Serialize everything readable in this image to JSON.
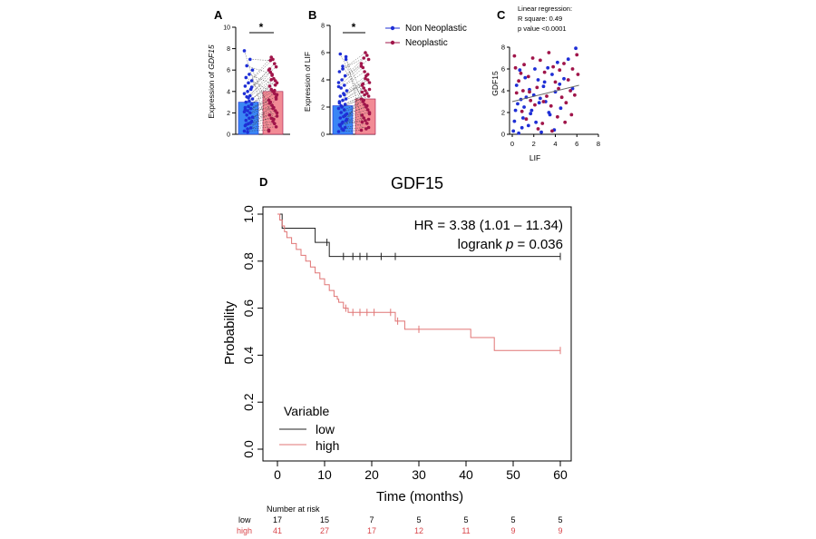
{
  "colors": {
    "blue": "#1f2fd6",
    "red": "#a0154a",
    "bar_blue": "#3a86f5",
    "bar_red": "#f28b95",
    "km_high": "#e07575",
    "km_low": "#222222"
  },
  "chart_data": [
    {
      "panel": "A",
      "type": "bar",
      "ylabel_prefix": "Expression of ",
      "ylabel_gene": "GDF15",
      "ylim": [
        0,
        10
      ],
      "yticks": [
        "0",
        "2",
        "4",
        "6",
        "8",
        "10"
      ],
      "categories": [
        "Non Neoplastic",
        "Neoplastic"
      ],
      "values": [
        3.0,
        4.0
      ],
      "significance": "*",
      "points_blue": [
        0.3,
        0.5,
        0.6,
        0.8,
        1.0,
        1.2,
        1.3,
        1.5,
        1.6,
        1.8,
        2.0,
        2.1,
        2.2,
        2.4,
        2.5,
        2.6,
        2.8,
        3.0,
        3.1,
        3.3,
        3.5,
        3.6,
        3.8,
        4.0,
        4.2,
        4.5,
        4.8,
        5.0,
        5.3,
        5.6,
        6.0,
        6.4,
        7.0,
        7.8,
        0.2,
        1.1,
        2.3,
        3.4,
        4.4,
        0.9
      ],
      "points_red": [
        0.4,
        0.7,
        1.0,
        1.2,
        1.5,
        1.8,
        2.0,
        2.2,
        2.5,
        2.7,
        3.0,
        3.2,
        3.5,
        3.8,
        4.0,
        4.2,
        4.5,
        4.8,
        5.0,
        5.2,
        5.5,
        5.8,
        6.0,
        6.3,
        6.6,
        7.0,
        7.2,
        2.9,
        3.7,
        4.6,
        1.4,
        5.6,
        6.9,
        0.3,
        3.3,
        4.1,
        2.4,
        5.1,
        6.1,
        1.7
      ]
    },
    {
      "panel": "B",
      "type": "bar",
      "ylabel": "Expression of LIF",
      "ylim": [
        0,
        8
      ],
      "yticks": [
        "0",
        "2",
        "4",
        "6",
        "8"
      ],
      "categories": [
        "Non Neoplastic",
        "Neoplastic"
      ],
      "values": [
        2.1,
        2.6
      ],
      "significance": "*",
      "points_blue": [
        0.2,
        0.4,
        0.5,
        0.7,
        0.9,
        1.0,
        1.2,
        1.3,
        1.5,
        1.6,
        1.8,
        1.9,
        2.0,
        2.2,
        2.3,
        2.5,
        2.6,
        2.8,
        3.0,
        3.2,
        3.4,
        3.6,
        3.8,
        4.0,
        4.3,
        4.6,
        5.0,
        5.5,
        5.9,
        0.3,
        1.1,
        2.1,
        2.9,
        3.5,
        0.8,
        1.4,
        2.4,
        4.8,
        5.7,
        0.6
      ],
      "points_red": [
        0.3,
        0.5,
        0.8,
        1.0,
        1.2,
        1.4,
        1.6,
        1.8,
        2.0,
        2.2,
        2.4,
        2.6,
        2.8,
        3.0,
        3.2,
        3.4,
        3.6,
        3.8,
        4.0,
        4.3,
        4.6,
        4.9,
        5.2,
        5.5,
        5.8,
        6.0,
        2.5,
        3.1,
        1.5,
        4.4,
        0.4,
        2.9,
        3.7,
        5.0,
        1.1,
        2.1,
        4.1,
        5.6,
        0.9,
        3.3
      ]
    },
    {
      "panel": "C",
      "type": "scatter",
      "xlabel": "LIF",
      "ylabel": "GDF15",
      "xlim": [
        0,
        8
      ],
      "ylim": [
        0,
        8
      ],
      "xticks": [
        "0",
        "2",
        "4",
        "6",
        "8"
      ],
      "yticks": [
        "0",
        "2",
        "4",
        "6",
        "8"
      ],
      "annotation": [
        "Linear regression:",
        "R square: 0.49",
        "p value <0.0001"
      ],
      "regression": {
        "x": [
          0,
          6.2
        ],
        "y": [
          3.0,
          4.5
        ]
      },
      "points_blue": [
        [
          0.1,
          0.3
        ],
        [
          0.2,
          1.2
        ],
        [
          0.3,
          2.2
        ],
        [
          0.5,
          2.8
        ],
        [
          0.6,
          0.1
        ],
        [
          0.8,
          3.2
        ],
        [
          1.0,
          1.5
        ],
        [
          1.1,
          2.5
        ],
        [
          1.3,
          3.4
        ],
        [
          1.5,
          0.8
        ],
        [
          1.6,
          4.1
        ],
        [
          1.8,
          2.2
        ],
        [
          2.0,
          3.6
        ],
        [
          2.2,
          1.1
        ],
        [
          2.4,
          5.0
        ],
        [
          2.5,
          2.9
        ],
        [
          2.7,
          0.2
        ],
        [
          2.9,
          4.4
        ],
        [
          3.1,
          3.0
        ],
        [
          3.3,
          6.1
        ],
        [
          3.5,
          1.8
        ],
        [
          3.7,
          5.5
        ],
        [
          3.9,
          0.4
        ],
        [
          4.0,
          3.9
        ],
        [
          4.2,
          6.6
        ],
        [
          4.5,
          2.4
        ],
        [
          4.8,
          5.1
        ],
        [
          5.2,
          6.9
        ],
        [
          5.6,
          4.2
        ],
        [
          5.9,
          7.9
        ],
        [
          0.4,
          4.5
        ],
        [
          1.2,
          5.2
        ],
        [
          2.1,
          6.0
        ],
        [
          3.0,
          4.8
        ],
        [
          0.9,
          0.6
        ],
        [
          1.7,
          1.9
        ],
        [
          2.6,
          3.3
        ],
        [
          3.4,
          2.0
        ],
        [
          4.4,
          4.6
        ],
        [
          0.7,
          5.9
        ]
      ],
      "points_red": [
        [
          0.2,
          7.2
        ],
        [
          0.4,
          3.8
        ],
        [
          0.6,
          4.9
        ],
        [
          0.9,
          2.1
        ],
        [
          1.1,
          6.4
        ],
        [
          1.3,
          1.4
        ],
        [
          1.5,
          5.3
        ],
        [
          1.7,
          3.1
        ],
        [
          1.9,
          7.0
        ],
        [
          2.1,
          2.7
        ],
        [
          2.3,
          4.3
        ],
        [
          2.6,
          6.8
        ],
        [
          2.8,
          1.0
        ],
        [
          3.0,
          5.7
        ],
        [
          3.2,
          3.5
        ],
        [
          3.4,
          7.5
        ],
        [
          3.6,
          2.6
        ],
        [
          3.8,
          6.2
        ],
        [
          4.0,
          4.8
        ],
        [
          4.2,
          1.6
        ],
        [
          4.4,
          5.9
        ],
        [
          4.6,
          3.4
        ],
        [
          4.8,
          6.5
        ],
        [
          5.0,
          2.9
        ],
        [
          5.2,
          5.0
        ],
        [
          5.4,
          4.0
        ],
        [
          5.6,
          6.0
        ],
        [
          5.8,
          3.6
        ],
        [
          6.0,
          7.3
        ],
        [
          6.1,
          5.5
        ],
        [
          1.0,
          4.0
        ],
        [
          2.4,
          0.5
        ],
        [
          3.7,
          0.3
        ],
        [
          4.9,
          1.1
        ],
        [
          0.3,
          6.1
        ],
        [
          1.6,
          3.9
        ],
        [
          2.9,
          3.0
        ],
        [
          4.3,
          4.2
        ],
        [
          5.5,
          1.8
        ],
        [
          0.8,
          5.6
        ]
      ]
    },
    {
      "panel": "D",
      "type": "line",
      "title": "GDF15",
      "xlabel": "Time (months)",
      "ylabel": "Probability",
      "xlim": [
        0,
        60
      ],
      "ylim": [
        0,
        1
      ],
      "xticks": [
        "0",
        "10",
        "20",
        "30",
        "40",
        "50",
        "60"
      ],
      "yticks": [
        "0.0",
        "0.2",
        "0.4",
        "0.6",
        "0.8",
        "1.0"
      ],
      "hr_text": "HR = 3.38 (1.01 – 11.34)",
      "logrank_prefix": "logrank ",
      "logrank_p": "p",
      "logrank_suffix": " = 0.036",
      "legend_title": "Variable",
      "series": [
        {
          "name": "low",
          "steps": [
            [
              0,
              1.0
            ],
            [
              1,
              0.94
            ],
            [
              8,
              0.88
            ],
            [
              11,
              0.82
            ],
            [
              60,
              0.82
            ]
          ],
          "censor": [
            10.5,
            14,
            16,
            17.5,
            19,
            22,
            25,
            60
          ]
        },
        {
          "name": "high",
          "steps": [
            [
              0,
              1.0
            ],
            [
              0.5,
              0.975
            ],
            [
              1,
              0.95
            ],
            [
              1.5,
              0.925
            ],
            [
              2,
              0.9
            ],
            [
              3,
              0.875
            ],
            [
              4,
              0.85
            ],
            [
              5,
              0.825
            ],
            [
              6,
              0.8
            ],
            [
              7,
              0.775
            ],
            [
              8,
              0.75
            ],
            [
              9,
              0.725
            ],
            [
              10,
              0.7
            ],
            [
              11,
              0.675
            ],
            [
              12,
              0.65
            ],
            [
              12.7,
              0.638
            ],
            [
              13,
              0.625
            ],
            [
              14,
              0.6
            ],
            [
              15,
              0.582
            ],
            [
              25,
              0.545
            ],
            [
              27,
              0.51
            ],
            [
              41,
              0.475
            ],
            [
              46,
              0.42
            ],
            [
              60,
              0.42
            ]
          ],
          "censor": [
            14.5,
            16,
            17.5,
            19,
            20.5,
            24,
            25.5,
            30,
            60
          ]
        }
      ],
      "risk_table": {
        "title": "Number at risk",
        "times": [
          0,
          10,
          20,
          30,
          40,
          50,
          60
        ],
        "rows": [
          {
            "name": "low",
            "counts": [
              "17",
              "15",
              "7",
              "5",
              "5",
              "5",
              "5"
            ]
          },
          {
            "name": "high",
            "counts": [
              "41",
              "27",
              "17",
              "12",
              "11",
              "9",
              "9"
            ]
          }
        ]
      }
    }
  ],
  "panel_b_legend": {
    "non_neoplastic": "Non Neoplastic",
    "neoplastic": "Neoplastic"
  }
}
